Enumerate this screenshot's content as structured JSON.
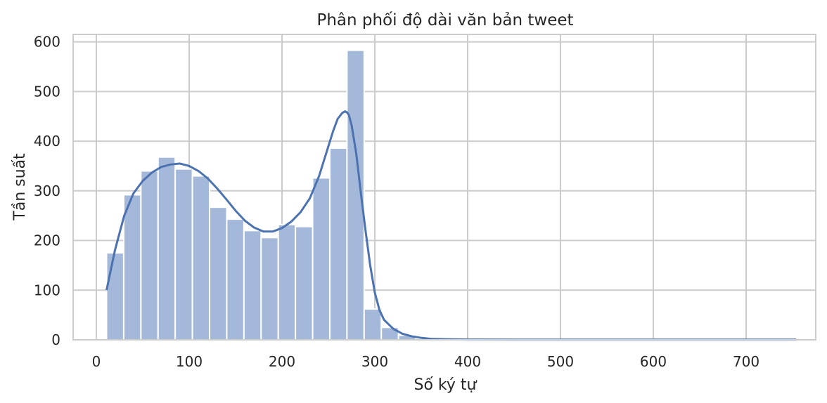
{
  "chart_data": {
    "type": "bar",
    "subtype": "histogram-with-kde",
    "title": "Phân phối độ dài văn bản tweet",
    "xlabel": "Số ký tự",
    "ylabel": "Tần suất",
    "xlim": [
      -25,
      775
    ],
    "ylim": [
      0,
      615
    ],
    "x_ticks": [
      0,
      100,
      200,
      300,
      400,
      500,
      600,
      700
    ],
    "y_ticks": [
      0,
      100,
      200,
      300,
      400,
      500,
      600
    ],
    "grid": true,
    "bins": [
      {
        "start": 11,
        "end": 29.5,
        "count": 175
      },
      {
        "start": 29.5,
        "end": 48,
        "count": 292
      },
      {
        "start": 48,
        "end": 66.5,
        "count": 340
      },
      {
        "start": 66.5,
        "end": 85,
        "count": 368
      },
      {
        "start": 85,
        "end": 103.5,
        "count": 344
      },
      {
        "start": 103.5,
        "end": 122,
        "count": 330
      },
      {
        "start": 122,
        "end": 140.5,
        "count": 267
      },
      {
        "start": 140.5,
        "end": 159,
        "count": 243
      },
      {
        "start": 159,
        "end": 177.5,
        "count": 220
      },
      {
        "start": 177.5,
        "end": 196,
        "count": 206
      },
      {
        "start": 196,
        "end": 214.5,
        "count": 232
      },
      {
        "start": 214.5,
        "end": 233,
        "count": 228
      },
      {
        "start": 233,
        "end": 251.5,
        "count": 326
      },
      {
        "start": 251.5,
        "end": 270,
        "count": 386
      },
      {
        "start": 270,
        "end": 288.5,
        "count": 583
      },
      {
        "start": 288.5,
        "end": 307,
        "count": 62
      },
      {
        "start": 307,
        "end": 325.5,
        "count": 25
      },
      {
        "start": 325.5,
        "end": 344,
        "count": 9
      },
      {
        "start": 344,
        "end": 362.5,
        "count": 2
      },
      {
        "start": 362.5,
        "end": 381,
        "count": 1
      },
      {
        "start": 381,
        "end": 399.5,
        "count": 1
      },
      {
        "start": 399.5,
        "end": 418,
        "count": 1
      },
      {
        "start": 418,
        "end": 436.5,
        "count": 1
      },
      {
        "start": 436.5,
        "end": 455,
        "count": 1
      },
      {
        "start": 584,
        "end": 602.5,
        "count": 1
      },
      {
        "start": 732,
        "end": 750.5,
        "count": 1
      }
    ],
    "kde": {
      "x": [
        11,
        20,
        30,
        40,
        50,
        60,
        70,
        80,
        90,
        100,
        110,
        120,
        130,
        140,
        150,
        160,
        170,
        180,
        190,
        200,
        210,
        220,
        230,
        240,
        250,
        255,
        260,
        265,
        268,
        270,
        272,
        275,
        280,
        285,
        290,
        295,
        300,
        305,
        310,
        320,
        330,
        340,
        350,
        360,
        380,
        400,
        450,
        500,
        600,
        700,
        754
      ],
      "y": [
        100,
        180,
        250,
        295,
        320,
        337,
        348,
        353,
        355,
        350,
        340,
        325,
        305,
        283,
        260,
        240,
        226,
        218,
        218,
        225,
        238,
        257,
        285,
        330,
        390,
        420,
        445,
        457,
        460,
        458,
        453,
        432,
        375,
        295,
        220,
        150,
        95,
        60,
        40,
        22,
        12,
        7,
        4,
        2,
        1,
        0.5,
        0.3,
        0.3,
        0.3,
        0.3,
        0.3
      ]
    },
    "colors": {
      "bar_fill": "#a4b8d9",
      "bar_edge": "#ffffff",
      "line": "#4c72b0",
      "grid": "#cccccc",
      "axis": "#cccccc"
    }
  }
}
